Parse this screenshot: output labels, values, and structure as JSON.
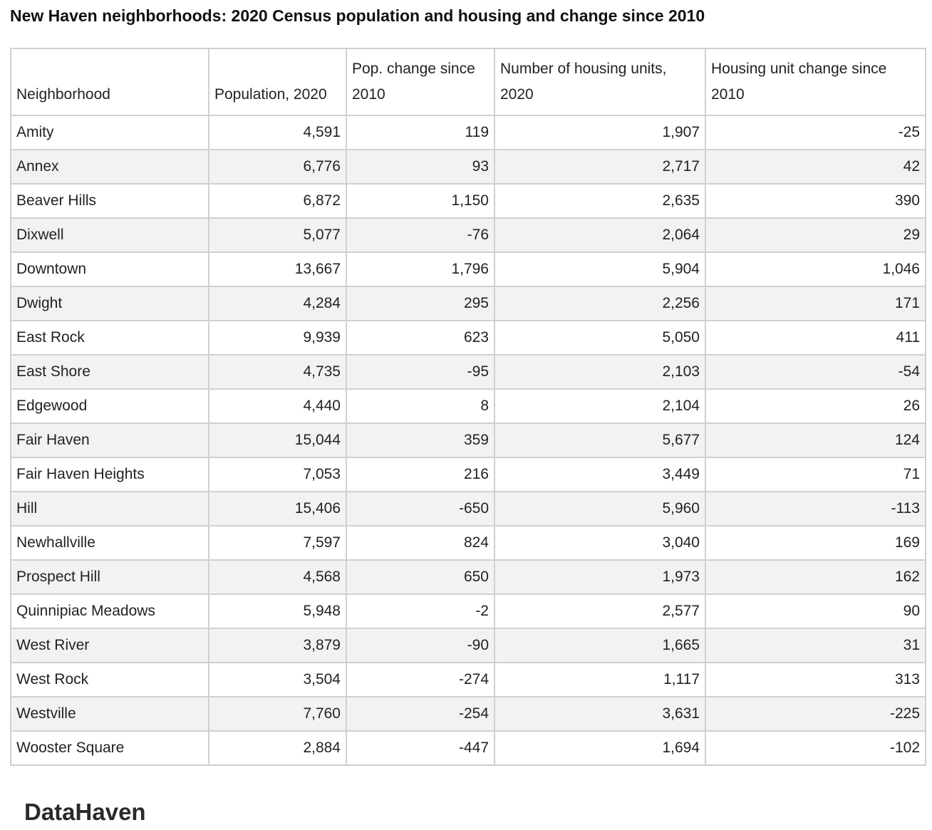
{
  "title": "New Haven neighborhoods: 2020 Census population and housing and change since 2010",
  "table": {
    "headers": [
      "Neighborhood",
      "Population, 2020",
      "Pop. change since 2010",
      "Number of housing units, 2020",
      "Housing unit change since 2010"
    ],
    "rows": [
      [
        "Amity",
        "4,591",
        "119",
        "1,907",
        "-25"
      ],
      [
        "Annex",
        "6,776",
        "93",
        "2,717",
        "42"
      ],
      [
        "Beaver Hills",
        "6,872",
        "1,150",
        "2,635",
        "390"
      ],
      [
        "Dixwell",
        "5,077",
        "-76",
        "2,064",
        "29"
      ],
      [
        "Downtown",
        "13,667",
        "1,796",
        "5,904",
        "1,046"
      ],
      [
        "Dwight",
        "4,284",
        "295",
        "2,256",
        "171"
      ],
      [
        "East Rock",
        "9,939",
        "623",
        "5,050",
        "411"
      ],
      [
        "East Shore",
        "4,735",
        "-95",
        "2,103",
        "-54"
      ],
      [
        "Edgewood",
        "4,440",
        "8",
        "2,104",
        "26"
      ],
      [
        "Fair Haven",
        "15,044",
        "359",
        "5,677",
        "124"
      ],
      [
        "Fair Haven Heights",
        "7,053",
        "216",
        "3,449",
        "71"
      ],
      [
        "Hill",
        "15,406",
        "-650",
        "5,960",
        "-113"
      ],
      [
        "Newhallville",
        "7,597",
        "824",
        "3,040",
        "169"
      ],
      [
        "Prospect Hill",
        "4,568",
        "650",
        "1,973",
        "162"
      ],
      [
        "Quinnipiac Meadows",
        "5,948",
        "-2",
        "2,577",
        "90"
      ],
      [
        "West River",
        "3,879",
        "-90",
        "1,665",
        "31"
      ],
      [
        "West Rock",
        "3,504",
        "-274",
        "1,117",
        "313"
      ],
      [
        "Westville",
        "7,760",
        "-254",
        "3,631",
        "-225"
      ],
      [
        "Wooster Square",
        "2,884",
        "-447",
        "1,694",
        "-102"
      ]
    ]
  },
  "logo": "DataHaven"
}
